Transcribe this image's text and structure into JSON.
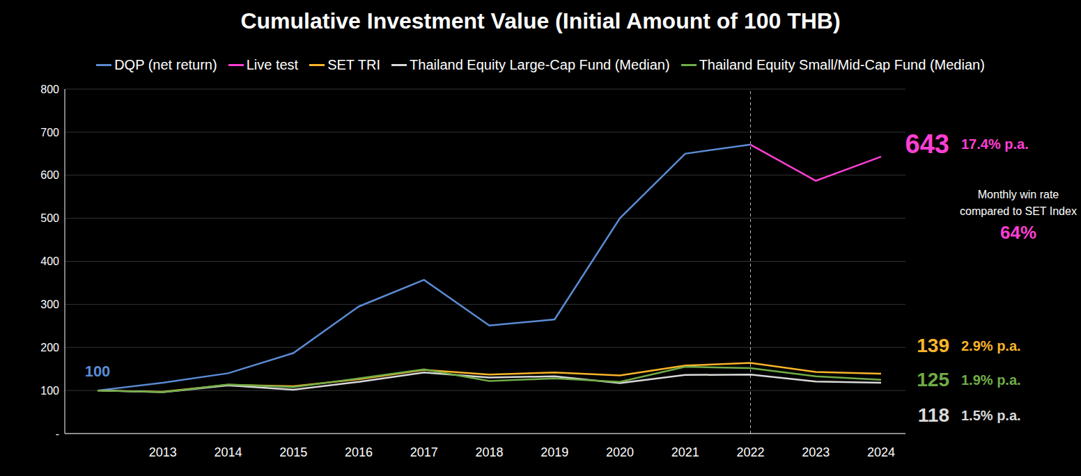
{
  "chart_data": {
    "type": "line",
    "title": "Cumulative Investment Value (Initial Amount of 100 THB)",
    "categories": [
      null,
      "2013",
      "2014",
      "2015",
      "2016",
      "2017",
      "2018",
      "2019",
      "2020",
      "2021",
      "2022",
      "2023",
      "2024"
    ],
    "series": [
      {
        "name": "DQP (net return)",
        "color": "#5B8BD4",
        "values": [
          100,
          118,
          140,
          187,
          295,
          357,
          251,
          265,
          500,
          650,
          671,
          null,
          null
        ],
        "value_labels": [
          "100",
          null,
          null,
          null,
          null,
          null,
          null,
          null,
          null,
          null,
          null,
          null,
          null
        ]
      },
      {
        "name": "Live test",
        "color": "#FF3FD4",
        "values": [
          null,
          null,
          null,
          null,
          null,
          null,
          null,
          null,
          null,
          null,
          671,
          587,
          643
        ],
        "value_labels": [
          null,
          null,
          null,
          null,
          null,
          null,
          null,
          null,
          null,
          null,
          null,
          null,
          "643"
        ]
      },
      {
        "name": "SET TRI",
        "color": "#F9B529",
        "values": [
          100,
          97,
          113,
          110,
          126,
          148,
          137,
          142,
          135,
          158,
          164,
          143,
          139
        ],
        "value_labels": [
          null,
          null,
          null,
          null,
          null,
          null,
          null,
          null,
          null,
          null,
          null,
          null,
          "139"
        ]
      },
      {
        "name": "Thailand Equity Large-Cap Fund (Median)",
        "color": "#D9D9D9",
        "values": [
          100,
          96,
          112,
          102,
          120,
          142,
          130,
          133,
          117,
          136,
          137,
          121,
          118
        ],
        "value_labels": [
          null,
          null,
          null,
          null,
          null,
          null,
          null,
          null,
          null,
          null,
          null,
          null,
          "118"
        ]
      },
      {
        "name": "Thailand Equity Small/Mid-Cap Fund (Median)",
        "color": "#70AD47",
        "values": [
          100,
          96,
          114,
          108,
          128,
          149,
          122,
          128,
          120,
          155,
          152,
          133,
          125
        ],
        "value_labels": [
          null,
          null,
          null,
          null,
          null,
          null,
          null,
          null,
          null,
          null,
          null,
          null,
          "125"
        ]
      }
    ],
    "ylim": [
      0,
      800
    ],
    "yticks": [
      {
        "value": 0,
        "label": "-"
      },
      100,
      200,
      300,
      400,
      500,
      600,
      700,
      800
    ],
    "grid": true,
    "legend": "top",
    "annotations": [
      {
        "series": "Live test",
        "text": "17.4% p.a."
      },
      {
        "series": "SET TRI",
        "text": "2.9% p.a."
      },
      {
        "series": "Thailand Equity Small/Mid-Cap Fund (Median)",
        "text": "1.9% p.a."
      },
      {
        "series": "Thailand Equity Large-Cap Fund (Median)",
        "text": "1.5% p.a."
      }
    ],
    "note": {
      "text": [
        "Monthly win rate",
        "compared to SET Index"
      ],
      "value": 64,
      "label": "64%",
      "color": "#FF3FD4"
    }
  }
}
